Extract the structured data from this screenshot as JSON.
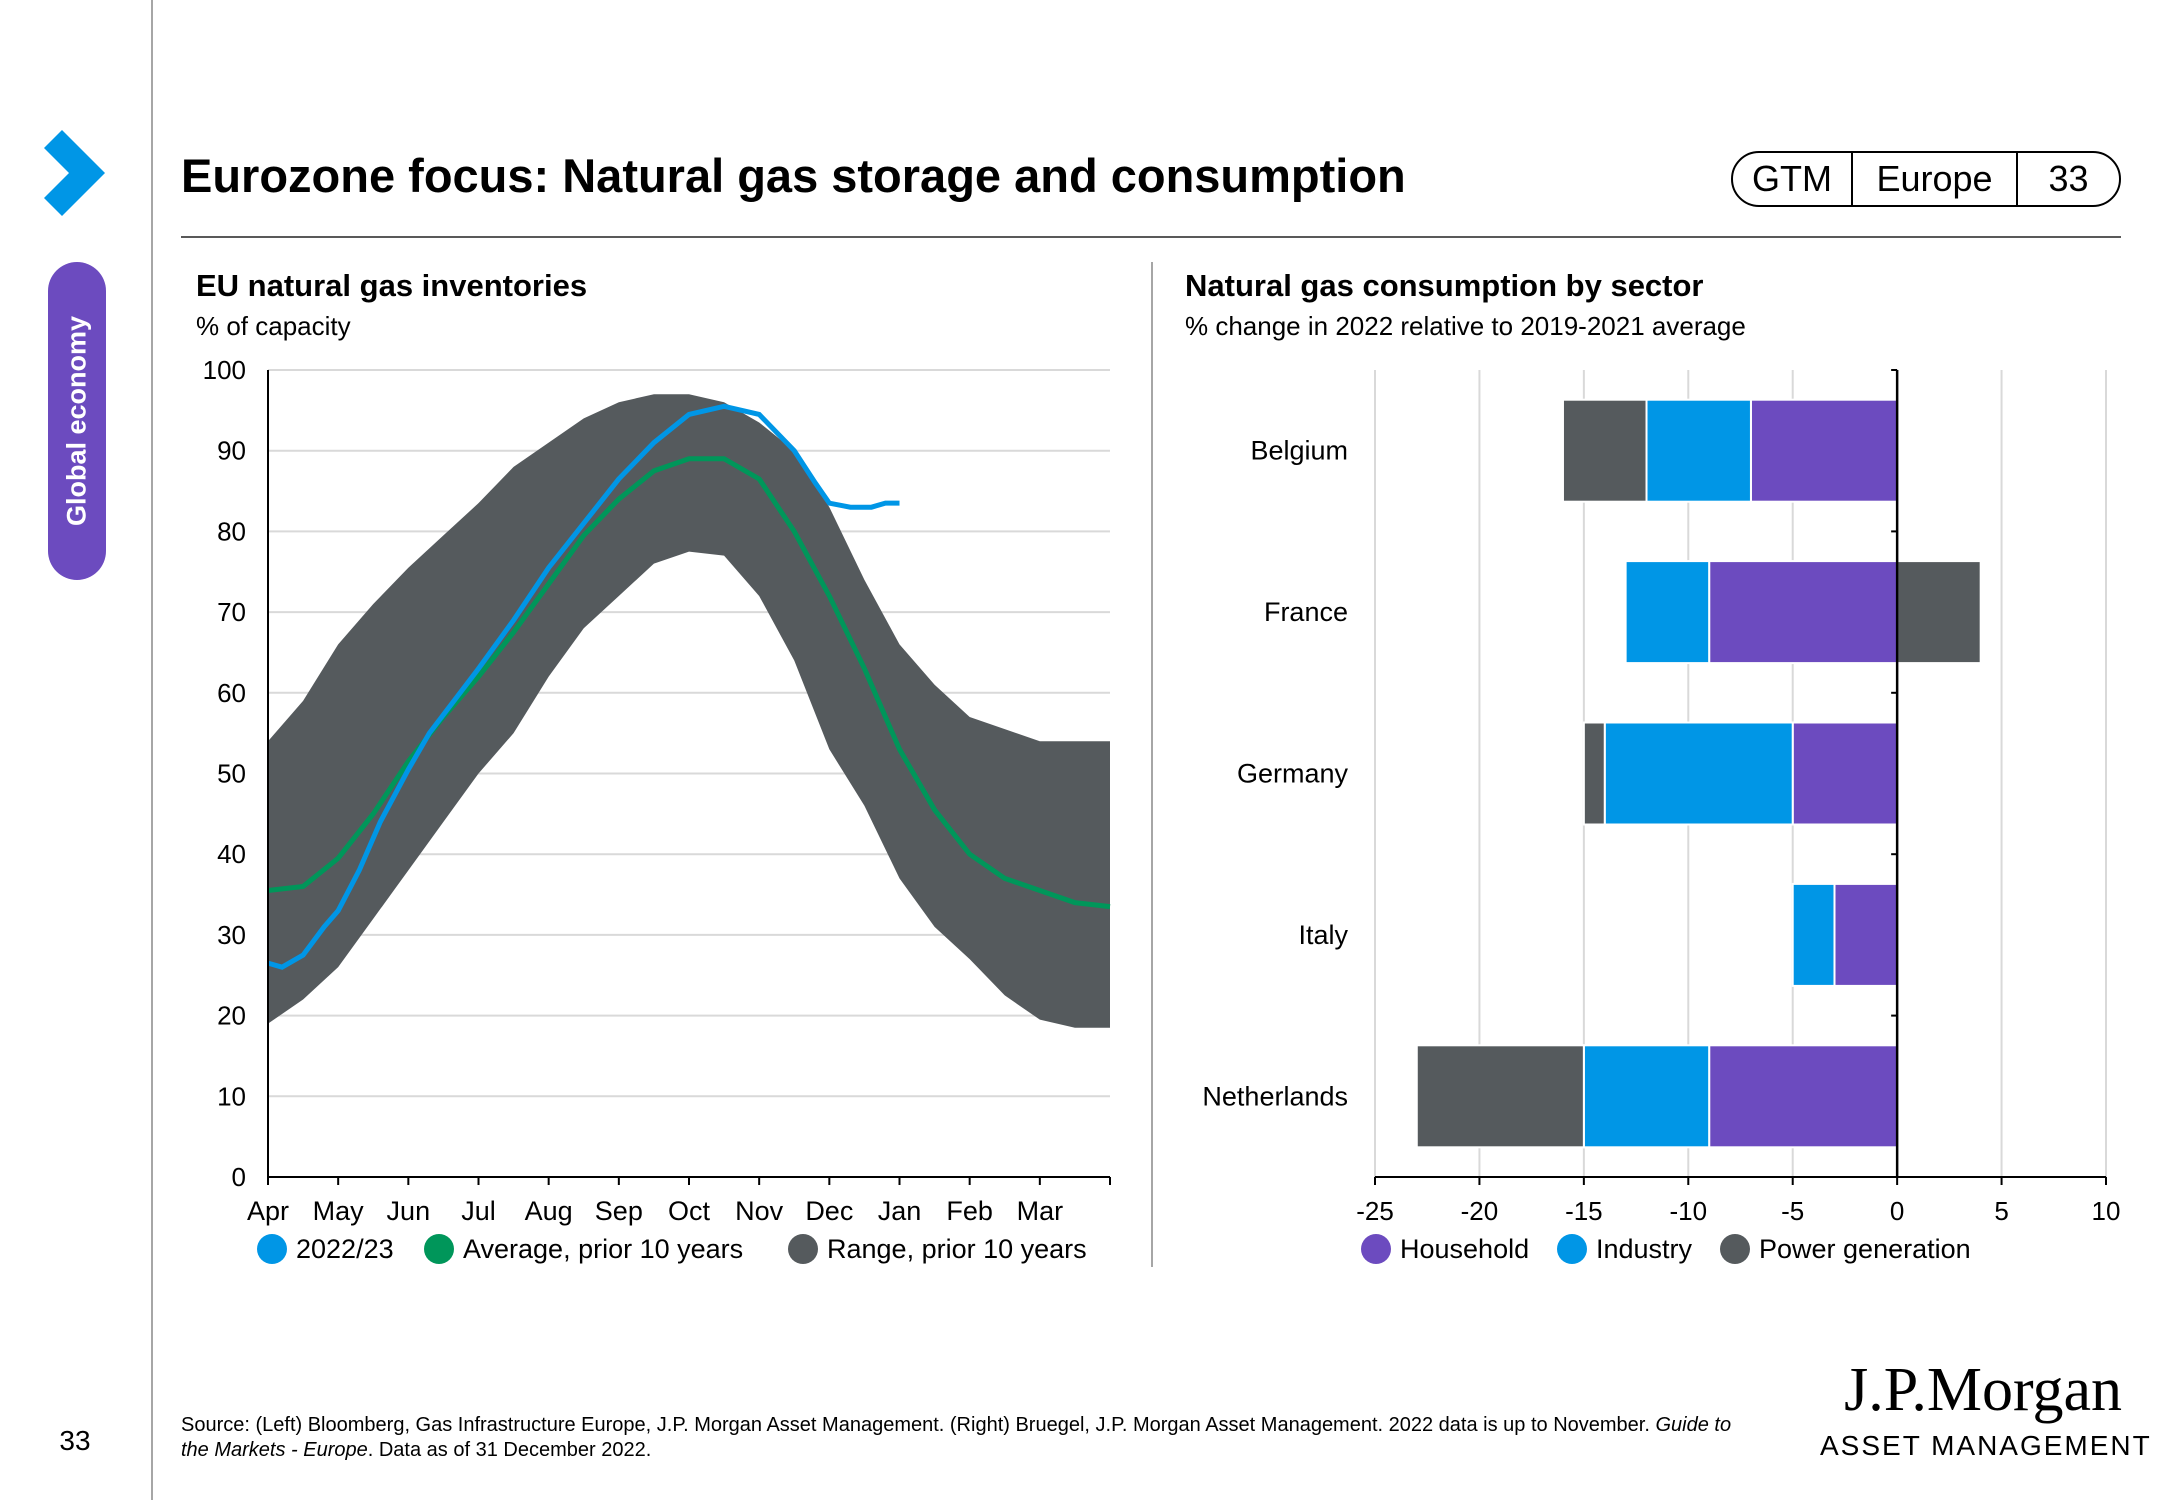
{
  "header": {
    "title": "Eurozone focus: Natural gas storage and consumption",
    "badge": [
      "GTM",
      "Europe",
      "33"
    ]
  },
  "sidebar": {
    "section_label": "Global economy",
    "page_number": "33"
  },
  "colors": {
    "brand_purple": "#6c4bbf",
    "nav_blue": "#0096e6",
    "series_2022": "#0096e6",
    "series_avg": "#00965a",
    "range": "#555a5d",
    "household": "#6c4bbf",
    "industry": "#0096e6",
    "power": "#555a5d"
  },
  "icons": {
    "nav": "chevron-right-icon"
  },
  "source_text": {
    "main": "Source: (Left) Bloomberg, Gas Infrastructure Europe, J.P. Morgan Asset Management. (Right) Bruegel, J.P. Morgan Asset Management. 2022 data is up to November. ",
    "italic": "Guide to the Markets - Europe",
    "tail": ". Data as of 31 December 2022."
  },
  "logo": {
    "main": "J.P.Morgan",
    "sub": "ASSET MANAGEMENT"
  },
  "chart_data": [
    {
      "type": "line",
      "title": "EU natural gas inventories",
      "subtitle": "% of capacity",
      "x_categories": [
        "Apr",
        "May",
        "Jun",
        "Jul",
        "Aug",
        "Sep",
        "Oct",
        "Nov",
        "Dec",
        "Jan",
        "Feb",
        "Mar"
      ],
      "ylim": [
        0,
        100
      ],
      "yticks": [
        0,
        10,
        20,
        30,
        40,
        50,
        60,
        70,
        80,
        90,
        100
      ],
      "grid": true,
      "legend_position": "bottom",
      "x_range_months": [
        0,
        12
      ],
      "series": [
        {
          "name": "2022/23",
          "kind": "line",
          "x": [
            0,
            0.2,
            0.5,
            0.8,
            1,
            1.3,
            1.6,
            2,
            2.3,
            3,
            3.5,
            4,
            4.5,
            5,
            5.5,
            6,
            6.5,
            7,
            7.5,
            7.8,
            8,
            8.3,
            8.6,
            8.8,
            9
          ],
          "y": [
            26.5,
            26,
            27.5,
            31,
            33,
            38,
            44,
            50.5,
            55,
            63,
            69,
            75.5,
            81,
            86.5,
            91,
            94.5,
            95.5,
            94.5,
            90,
            86,
            83.5,
            83,
            83,
            83.5,
            83.5
          ]
        },
        {
          "name": "Average, prior 10 years",
          "kind": "line",
          "x": [
            0,
            0.5,
            1,
            1.5,
            2,
            2.5,
            3,
            3.5,
            4,
            4.5,
            5,
            5.5,
            6,
            6.5,
            7,
            7.5,
            8,
            8.5,
            9,
            9.5,
            10,
            10.5,
            11,
            11.5,
            12
          ],
          "y": [
            35.5,
            36,
            39.5,
            45,
            51.5,
            57,
            62,
            67.5,
            73.5,
            79.5,
            84,
            87.5,
            89,
            89,
            86.5,
            80,
            72,
            63,
            53,
            45.5,
            40,
            37,
            35.5,
            34,
            33.5
          ]
        },
        {
          "name": "Range, prior 10 years",
          "kind": "band",
          "x": [
            0,
            0.5,
            1,
            1.5,
            2,
            2.5,
            3,
            3.5,
            4,
            4.5,
            5,
            5.5,
            6,
            6.5,
            7,
            7.5,
            8,
            8.5,
            9,
            9.5,
            10,
            10.5,
            11,
            11.5,
            12
          ],
          "y_low": [
            19,
            22,
            26,
            32,
            38,
            44,
            50,
            55,
            62,
            68,
            72,
            76,
            77.5,
            77,
            72,
            64,
            53,
            46,
            37,
            31,
            27,
            22.5,
            19.5,
            18.5,
            18.5
          ],
          "y_high": [
            54,
            59,
            66,
            71,
            75.5,
            79.5,
            83.5,
            88,
            91,
            94,
            96,
            97,
            97,
            96,
            93.5,
            90,
            83,
            74,
            66,
            61,
            57,
            55.5,
            54,
            54,
            54
          ]
        }
      ]
    },
    {
      "type": "bar",
      "orientation": "horizontal",
      "stacked": true,
      "title": "Natural gas consumption by sector",
      "subtitle": "% change in 2022 relative to 2019-2021 average",
      "categories": [
        "Belgium",
        "France",
        "Germany",
        "Italy",
        "Netherlands"
      ],
      "xlim": [
        -25,
        10
      ],
      "xticks": [
        -25,
        -20,
        -15,
        -10,
        -5,
        0,
        5,
        10
      ],
      "grid": true,
      "legend_position": "bottom",
      "series": [
        {
          "name": "Household",
          "values": [
            -7,
            -9,
            -5,
            -3,
            -9
          ]
        },
        {
          "name": "Industry",
          "values": [
            -5,
            -4,
            -9,
            -2,
            -6
          ]
        },
        {
          "name": "Power generation",
          "values": [
            -4,
            4,
            -1,
            0,
            -8
          ]
        }
      ]
    }
  ]
}
